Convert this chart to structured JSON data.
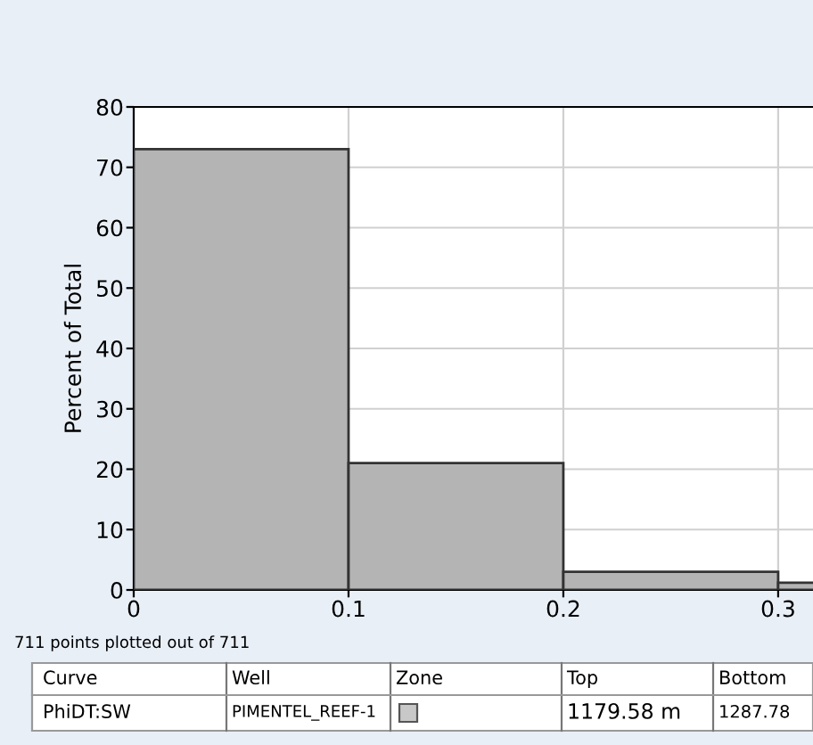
{
  "chart_data": {
    "type": "histogram",
    "ylabel": "Percent of Total",
    "bins": [
      0,
      0.1,
      0.2,
      0.3,
      0.4
    ],
    "values": [
      73,
      21,
      3,
      1.2
    ],
    "color": "#b4b4b4",
    "xlim": [
      0,
      0.32
    ],
    "xticks": [
      0,
      0.1,
      0.2,
      0.3
    ],
    "ylim": [
      0,
      80
    ],
    "yticks": [
      0,
      10,
      20,
      30,
      40,
      50,
      60,
      70,
      80
    ],
    "grid": true,
    "annotations": [
      "711 points plotted out of 711",
      "Curve",
      "Well",
      "Zone",
      "Top",
      "Bottom",
      "PhiDT:SW",
      "PIMENTEL_REEF-1",
      "1179.58 m",
      "1287.78"
    ]
  }
}
